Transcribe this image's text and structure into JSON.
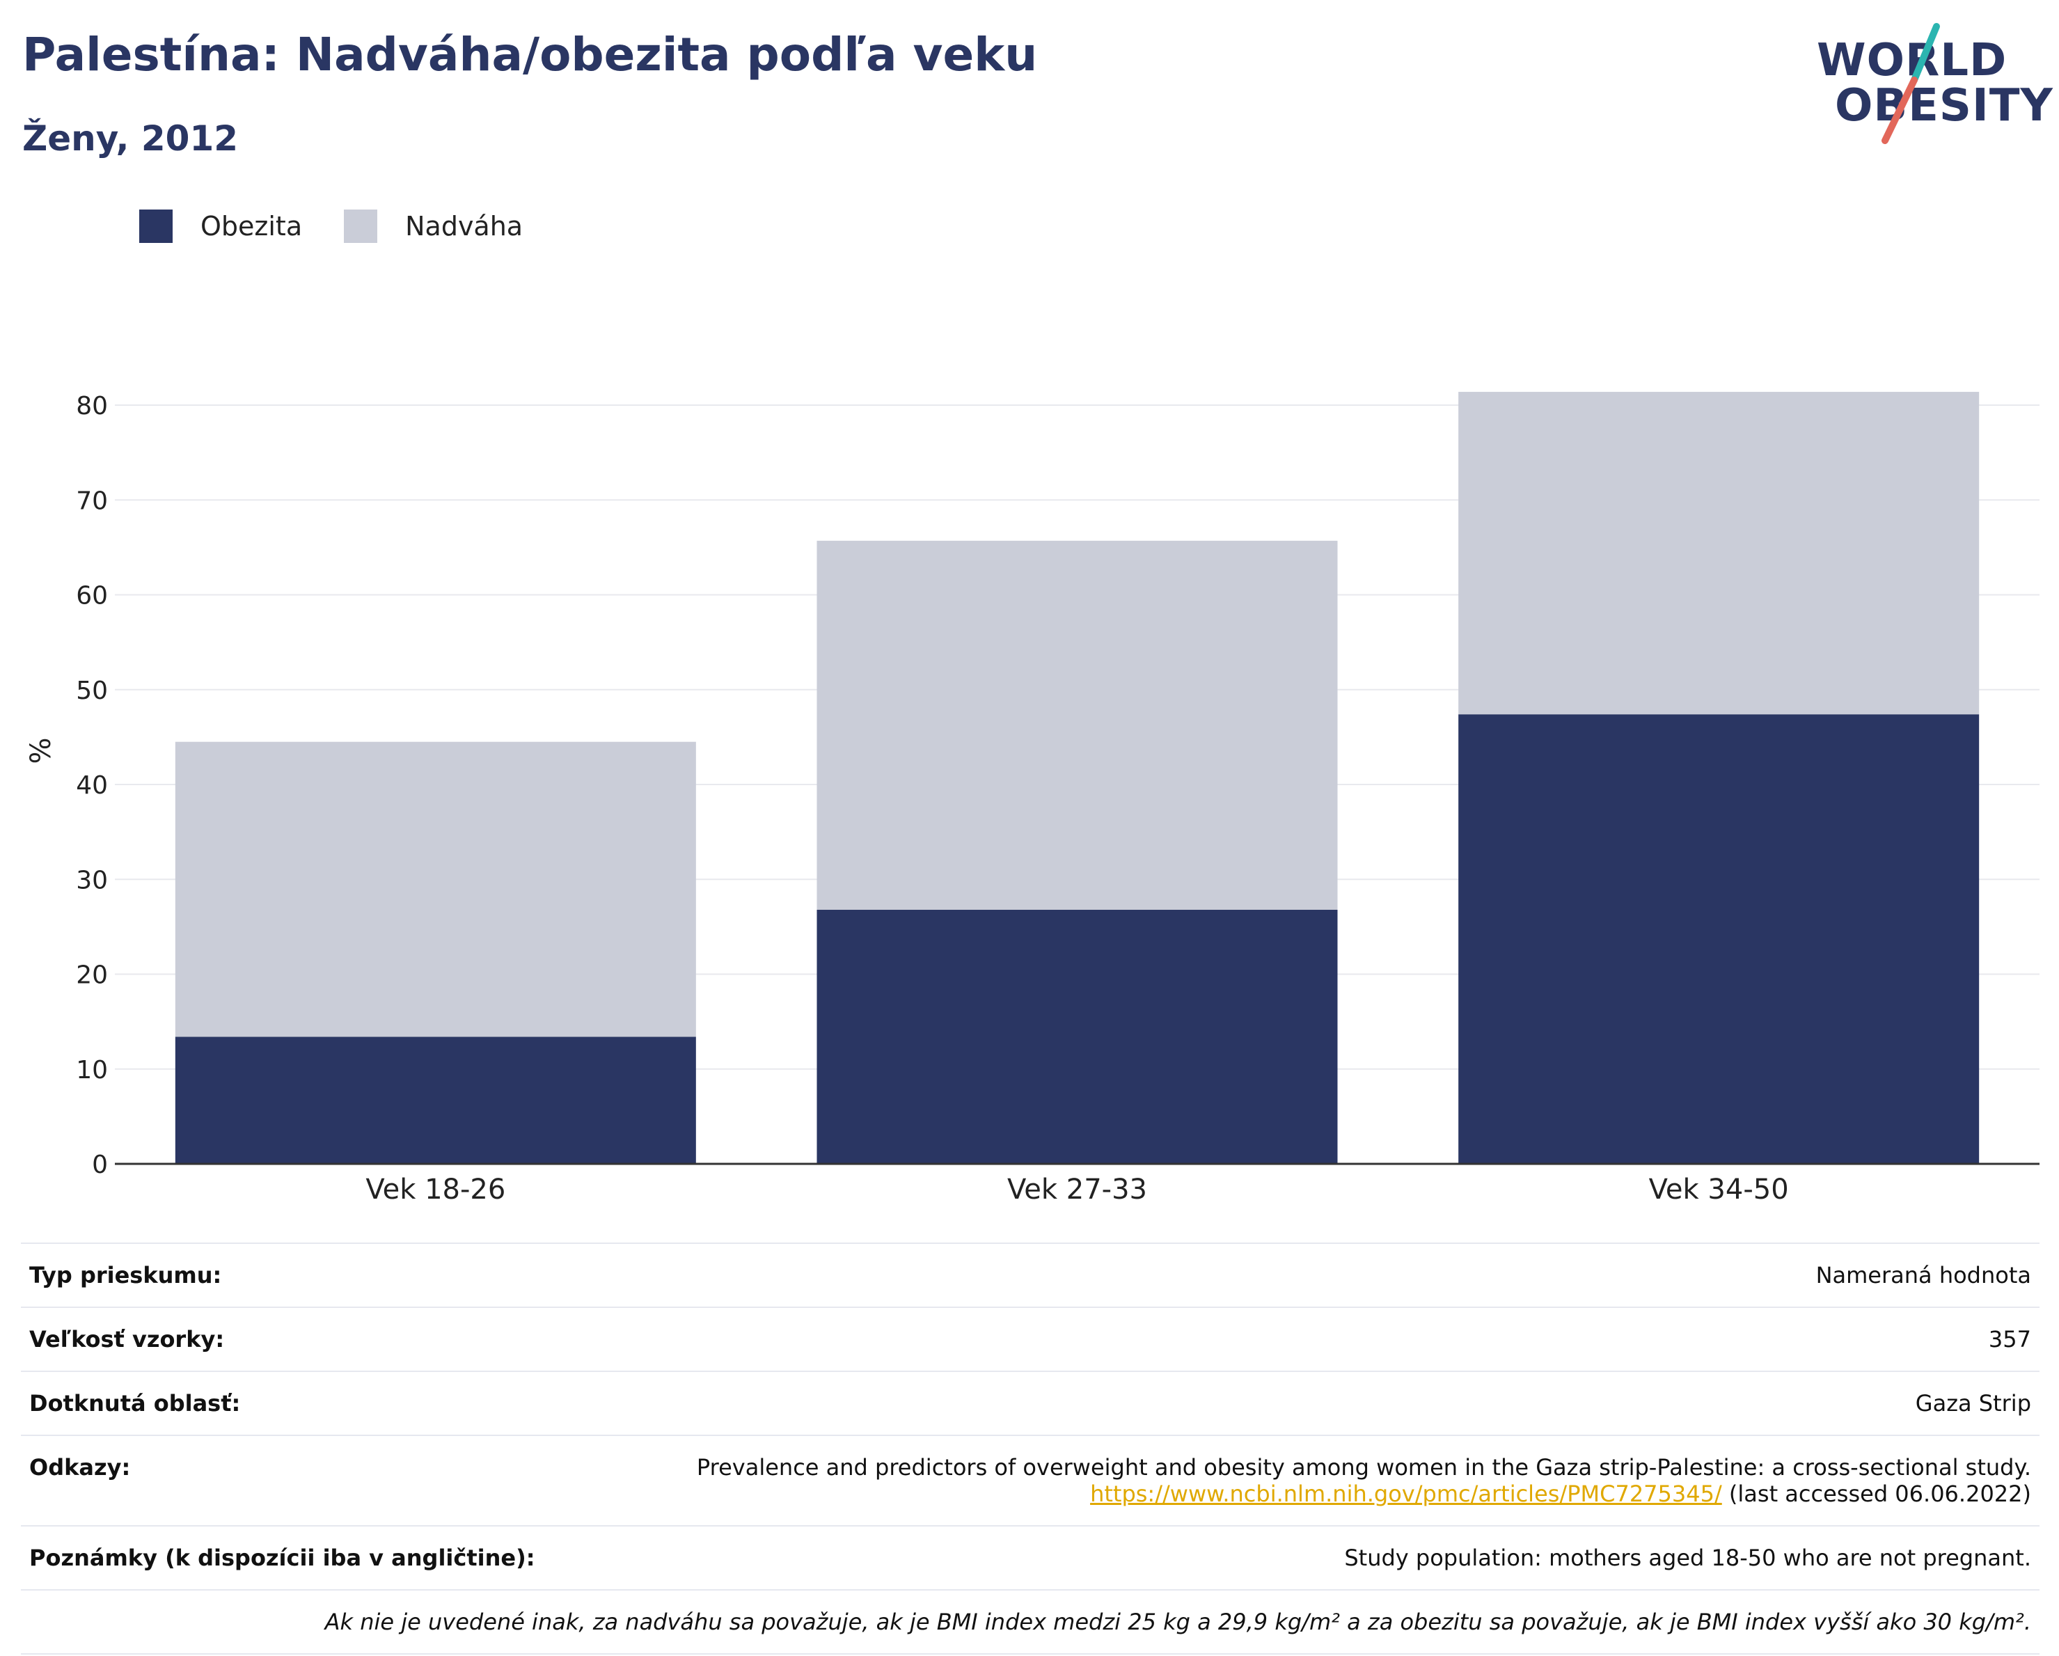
{
  "header": {
    "title": "Palestína: Nadváha/obezita podľa veku",
    "subtitle": "Ženy, 2012"
  },
  "logo": {
    "line1": "WORLD",
    "line2": "OBESITY",
    "accent_teal": "#2bb5b0",
    "accent_red": "#e2675a"
  },
  "colors": {
    "obesity": "#2a3663",
    "overweight": "#cacdd8",
    "grid": "#e8e9ee",
    "axis": "#333333"
  },
  "chart_data": {
    "type": "bar",
    "stacked": true,
    "categories": [
      "Vek 18-26",
      "Vek 27-33",
      "Vek 34-50"
    ],
    "series": [
      {
        "name": "Obezita",
        "values": [
          13.4,
          26.8,
          47.4
        ]
      },
      {
        "name": "Nadváha",
        "values": [
          31.1,
          38.9,
          34.0
        ]
      }
    ],
    "ylabel": "%",
    "ylim": [
      0,
      80
    ],
    "yticks": [
      0,
      10,
      20,
      30,
      40,
      50,
      60,
      70,
      80
    ],
    "grid": true,
    "legend_position": "top-left"
  },
  "info": {
    "survey_type_label": "Typ prieskumu:",
    "survey_type_value": "Nameraná hodnota",
    "sample_size_label": "Veľkosť vzorky:",
    "sample_size_value": "357",
    "area_label": "Dotknutá oblasť:",
    "area_value": "Gaza Strip",
    "references_label": "Odkazy:",
    "references_text": "Prevalence and predictors of overweight and obesity among women in the Gaza strip-Palestine: a cross-sectional study.",
    "references_link": "https://www.ncbi.nlm.nih.gov/pmc/articles/PMC7275345/",
    "references_accessed": " (last accessed 06.06.2022)",
    "notes_label": "Poznámky (k dispozícii iba v angličtine):",
    "notes_value": "Study population: mothers aged 18-50 who are not pregnant.",
    "definition_note": "Ak nie je uvedené inak, za nadváhu sa považuje, ak je BMI index medzi 25 kg a 29,9 kg/m² a za obezitu sa považuje, ak je BMI index vyšší ako 30 kg/m²."
  }
}
